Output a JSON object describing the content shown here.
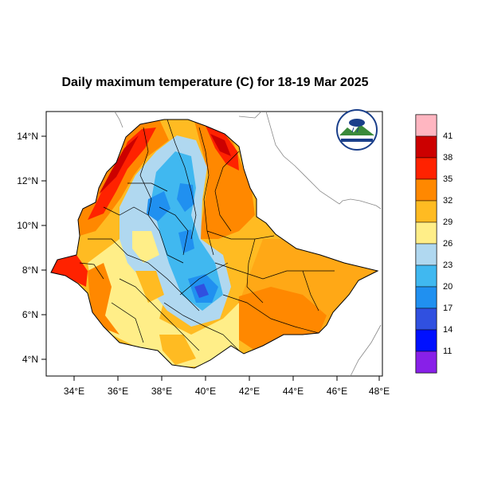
{
  "title": "Daily maximum temperature (C) for 18-19 Mar 2025",
  "axes": {
    "x_ticks": [
      "34°E",
      "36°E",
      "38°E",
      "40°E",
      "42°E",
      "44°E",
      "46°E",
      "48°E"
    ],
    "y_ticks": [
      "14°N",
      "12°N",
      "10°N",
      "8°N",
      "6°N",
      "4°N"
    ],
    "lon_range": [
      33.0,
      48.2
    ],
    "lat_range": [
      3.2,
      15.2
    ]
  },
  "colorbar": {
    "labels": [
      "41",
      "38",
      "35",
      "32",
      "29",
      "26",
      "23",
      "20",
      "17",
      "14",
      "11"
    ],
    "colors": [
      "#ffb6c1",
      "#cc0000",
      "#ff2200",
      "#ff8800",
      "#ffbb22",
      "#ffee88",
      "#b0d8f0",
      "#40b8f0",
      "#2090f0",
      "#3050e0",
      "#0010ff",
      "#8820e8"
    ]
  },
  "logo": {
    "name": "Ethiopian Meteorology Institute logo",
    "text": "Ethiopian Meteorology Institute"
  },
  "colors": {
    "frame": "#000000",
    "neighbor_border": "#888888",
    "country_border": "#000000"
  }
}
